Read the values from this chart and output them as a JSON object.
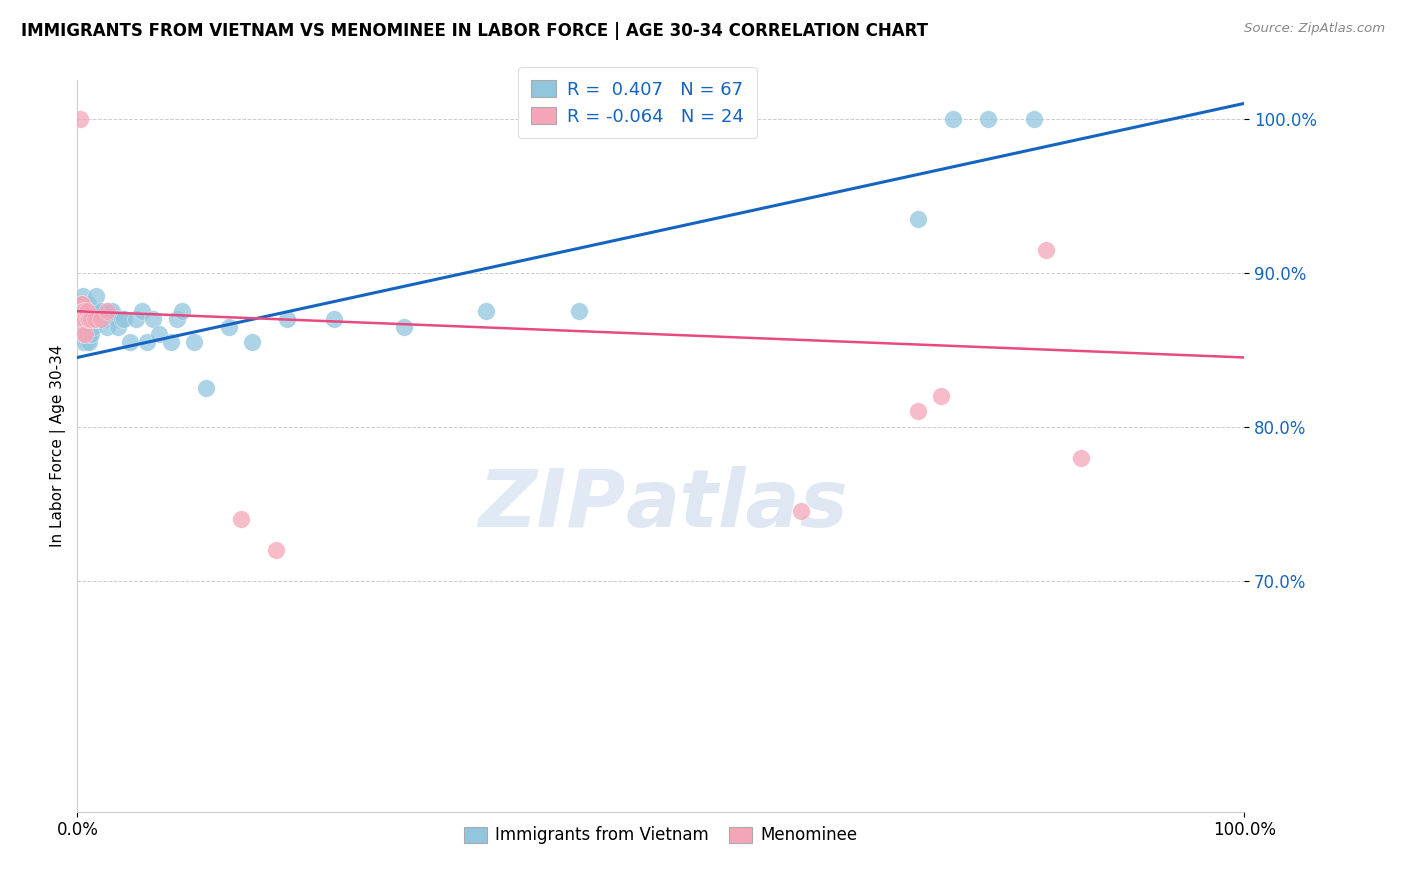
{
  "title": "IMMIGRANTS FROM VIETNAM VS MENOMINEE IN LABOR FORCE | AGE 30-34 CORRELATION CHART",
  "source": "Source: ZipAtlas.com",
  "ylabel": "In Labor Force | Age 30-34",
  "xlim": [
    0.0,
    1.0
  ],
  "ylim": [
    0.55,
    1.025
  ],
  "yticks": [
    0.7,
    0.8,
    0.9,
    1.0
  ],
  "ytick_labels": [
    "70.0%",
    "80.0%",
    "90.0%",
    "100.0%"
  ],
  "watermark": "ZIPatlas",
  "legend_r_blue": "R =  0.407",
  "legend_n_blue": "N = 67",
  "legend_r_pink": "R = -0.064",
  "legend_n_pink": "N = 24",
  "legend_label_blue": "Immigrants from Vietnam",
  "legend_label_pink": "Menominee",
  "blue_color": "#92c5de",
  "pink_color": "#f4a6b8",
  "trend_blue": "#1565c0",
  "trend_pink": "#e84a7f",
  "blue_scatter_x": [
    0.002,
    0.003,
    0.003,
    0.004,
    0.004,
    0.005,
    0.005,
    0.005,
    0.005,
    0.006,
    0.006,
    0.006,
    0.007,
    0.007,
    0.007,
    0.008,
    0.008,
    0.008,
    0.009,
    0.009,
    0.009,
    0.01,
    0.01,
    0.01,
    0.011,
    0.011,
    0.012,
    0.012,
    0.013,
    0.013,
    0.014,
    0.015,
    0.016,
    0.017,
    0.018,
    0.02,
    0.022,
    0.024,
    0.025,
    0.027,
    0.03,
    0.033,
    0.035,
    0.038,
    0.04,
    0.045,
    0.05,
    0.055,
    0.06,
    0.065,
    0.07,
    0.08,
    0.085,
    0.09,
    0.1,
    0.11,
    0.13,
    0.15,
    0.18,
    0.22,
    0.28,
    0.35,
    0.43,
    0.72,
    0.75,
    0.78,
    0.82
  ],
  "blue_scatter_y": [
    0.87,
    0.88,
    0.86,
    0.87,
    0.86,
    0.885,
    0.875,
    0.865,
    0.855,
    0.875,
    0.865,
    0.855,
    0.875,
    0.87,
    0.855,
    0.875,
    0.87,
    0.855,
    0.88,
    0.87,
    0.86,
    0.875,
    0.865,
    0.855,
    0.87,
    0.86,
    0.875,
    0.86,
    0.875,
    0.865,
    0.87,
    0.875,
    0.885,
    0.87,
    0.87,
    0.875,
    0.87,
    0.87,
    0.865,
    0.875,
    0.875,
    0.87,
    0.865,
    0.87,
    0.87,
    0.855,
    0.87,
    0.875,
    0.855,
    0.87,
    0.86,
    0.855,
    0.87,
    0.875,
    0.855,
    0.825,
    0.865,
    0.855,
    0.87,
    0.87,
    0.865,
    0.875,
    0.875,
    0.935,
    1.0,
    1.0,
    1.0
  ],
  "pink_scatter_x": [
    0.002,
    0.003,
    0.003,
    0.004,
    0.005,
    0.005,
    0.005,
    0.006,
    0.007,
    0.007,
    0.008,
    0.009,
    0.01,
    0.012,
    0.015,
    0.02,
    0.025,
    0.14,
    0.17,
    0.62,
    0.72,
    0.74,
    0.83,
    0.86
  ],
  "pink_scatter_y": [
    1.0,
    0.88,
    0.87,
    0.88,
    0.875,
    0.87,
    0.86,
    0.875,
    0.87,
    0.86,
    0.875,
    0.87,
    0.87,
    0.87,
    0.87,
    0.87,
    0.875,
    0.74,
    0.72,
    0.745,
    0.81,
    0.82,
    0.915,
    0.78
  ],
  "trend_blue_x0": 0.0,
  "trend_blue_y0": 0.845,
  "trend_blue_x1": 1.0,
  "trend_blue_y1": 1.01,
  "trend_pink_x0": 0.0,
  "trend_pink_y0": 0.875,
  "trend_pink_x1": 1.0,
  "trend_pink_y1": 0.845
}
